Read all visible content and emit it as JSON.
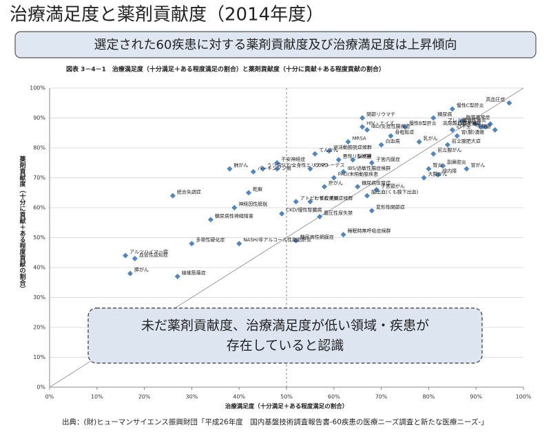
{
  "header": {
    "title": "治療満足度と薬剤貢献度（2014年度）",
    "banner": "選定された60疾患に対する薬剤貢献度及び治療満足度は上昇傾向"
  },
  "chart_data": {
    "type": "scatter",
    "title": "図表 3－4－1　治療満足度（十分満足＋ある程度満足の割合）と薬剤貢献度（十分に貢献＋ある程度貢献の割合）",
    "x_label": "治療満足度（十分満足＋ある程度満足の割合）",
    "y_label": "薬剤貢献度（十分に貢献＋ある程度貢献の割合）",
    "xlim": [
      0,
      100
    ],
    "ylim": [
      0,
      100
    ],
    "xticks": [
      {
        "value": 0,
        "label": "0%"
      },
      {
        "value": 10,
        "label": "10%"
      },
      {
        "value": 20,
        "label": "20%"
      },
      {
        "value": 30,
        "label": "30%"
      },
      {
        "value": 40,
        "label": "40%"
      },
      {
        "value": 50,
        "label": "50%"
      },
      {
        "value": 60,
        "label": "60%"
      },
      {
        "value": 70,
        "label": "70%"
      },
      {
        "value": 80,
        "label": "80%"
      },
      {
        "value": 90,
        "label": "90%"
      },
      {
        "value": 100,
        "label": "100%"
      }
    ],
    "yticks": [
      {
        "value": 0,
        "label": "0%"
      },
      {
        "value": 10,
        "label": "10%"
      },
      {
        "value": 20,
        "label": "20%"
      },
      {
        "value": 30,
        "label": "30%"
      },
      {
        "value": 40,
        "label": "40%"
      },
      {
        "value": 50,
        "label": "50%"
      },
      {
        "value": 60,
        "label": "60%"
      },
      {
        "value": 70,
        "label": "70%"
      },
      {
        "value": 80,
        "label": "80%"
      },
      {
        "value": 90,
        "label": "90%"
      },
      {
        "value": 100,
        "label": "100%"
      }
    ],
    "grid": true,
    "color": "#4a86c8",
    "labels": [
      "高血圧症",
      "慢性C型肝炎",
      "脂質異常症",
      "アレルギー性鼻炎",
      "喘息",
      "糖尿病",
      "高尿酸血症・痛風",
      "心筋梗塞",
      "不整脈",
      "心不全",
      "慢性B型肝炎",
      "関節リウマチ",
      "HIV・エイズ",
      "IBD/炎症性腸疾患",
      "胃(腸)潰瘍",
      "前立腺肥大症",
      "骨粗鬆症",
      "MRSA",
      "白血病",
      "乳がん",
      "前立腺がん",
      "副鼻腔炎",
      "胃がん",
      "腎炎",
      "緑内障",
      "大腸がん",
      "子宮内膜症",
      "脳梗塞",
      "過活動膀胱症候群",
      "てんかん",
      "悪性リンパ腫",
      "COPD",
      "IBS/過敏性腸症候群",
      "PAD/末梢動脈疾患",
      "肝がん",
      "糖尿病性腎症",
      "子宮頸がん",
      "脳出血(くも膜下出血)",
      "むずむず脚症候群",
      "不安神経症",
      "うつ病",
      "SLE/全身性エリテマトーデス",
      "パーキンソン病",
      "肺がん",
      "乾癬",
      "神経因性膀胱",
      "アトピー性皮膚炎",
      "統合失調症",
      "CKD/慢性腎臓病",
      "腹圧性尿失禁",
      "変形性関節症",
      "睡眠時無呼吸症候群",
      "糖尿病性網膜症",
      "糖尿病性神経障害",
      "NASH/非アルコール性脂肪肝炎",
      "多発性硬化症",
      "アルツハイマー病",
      "血管性認知症",
      "膵がん",
      "線維筋痛症"
    ],
    "x": [
      97,
      85,
      87,
      93,
      90,
      81,
      92,
      91,
      94,
      85,
      75,
      66,
      66,
      67,
      86,
      84,
      72,
      63,
      70,
      78,
      81,
      83,
      88,
      80,
      82,
      79,
      68,
      64,
      59,
      56,
      61,
      55,
      62,
      60,
      58,
      65,
      69,
      67,
      55,
      48,
      45,
      48,
      43,
      38,
      42,
      39,
      52,
      26,
      49,
      57,
      68,
      62,
      52,
      34,
      40,
      30,
      16,
      18,
      17,
      27
    ],
    "values": [
      95,
      93,
      89,
      88,
      88,
      90,
      87,
      87,
      86,
      86,
      87,
      90,
      87,
      86,
      84,
      81,
      84,
      82,
      81,
      82,
      78,
      74,
      73,
      73,
      71,
      70,
      75,
      76,
      79,
      78,
      76,
      73,
      72,
      70,
      67,
      67,
      66,
      64,
      62,
      75,
      73,
      73,
      72,
      73,
      65,
      60,
      62,
      64,
      58,
      57,
      59,
      51,
      49,
      56,
      48,
      48,
      44,
      43,
      38,
      37
    ]
  },
  "callout": {
    "lines": [
      "未だ薬剤貢献度、治療満足度が低い領域・疾患が",
      "存在していると認識"
    ]
  },
  "source": "出典：(財)ヒューマンサイエンス振興財団「平成26年度　国内基盤技術調査報告書-60疾患の医療ニーズ調査と新たな医療ニーズ-」"
}
